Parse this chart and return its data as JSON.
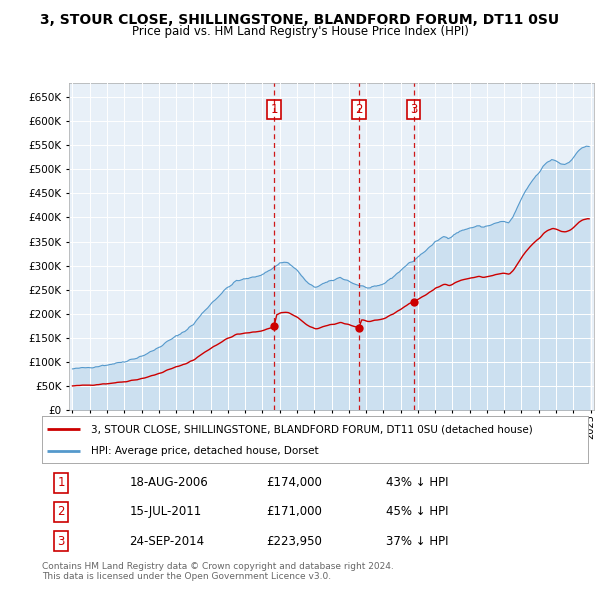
{
  "title": "3, STOUR CLOSE, SHILLINGSTONE, BLANDFORD FORUM, DT11 0SU",
  "subtitle": "Price paid vs. HM Land Registry's House Price Index (HPI)",
  "transactions": [
    {
      "num": 1,
      "date_yr": 2006.622,
      "price": 174000,
      "label": "18-AUG-2006",
      "pct": "43% ↓ HPI"
    },
    {
      "num": 2,
      "date_yr": 2011.538,
      "price": 171000,
      "label": "15-JUL-2011",
      "pct": "45% ↓ HPI"
    },
    {
      "num": 3,
      "date_yr": 2014.731,
      "price": 223950,
      "label": "24-SEP-2014",
      "pct": "37% ↓ HPI"
    }
  ],
  "legend_line1": "3, STOUR CLOSE, SHILLINGSTONE, BLANDFORD FORUM, DT11 0SU (detached house)",
  "legend_line2": "HPI: Average price, detached house, Dorset",
  "footer1": "Contains HM Land Registry data © Crown copyright and database right 2024.",
  "footer2": "This data is licensed under the Open Government Licence v3.0.",
  "ylim": [
    0,
    680000
  ],
  "yticks": [
    0,
    50000,
    100000,
    150000,
    200000,
    250000,
    300000,
    350000,
    400000,
    450000,
    500000,
    550000,
    600000,
    650000
  ],
  "hpi_color": "#5599cc",
  "hpi_fill_color": "#cce0f0",
  "price_color": "#cc0000",
  "bg_color": "#e8f0f8",
  "grid_color": "#ffffff",
  "transaction_box_color": "#cc0000",
  "dashed_line_color": "#cc0000",
  "xmin": 1995,
  "xmax": 2025
}
